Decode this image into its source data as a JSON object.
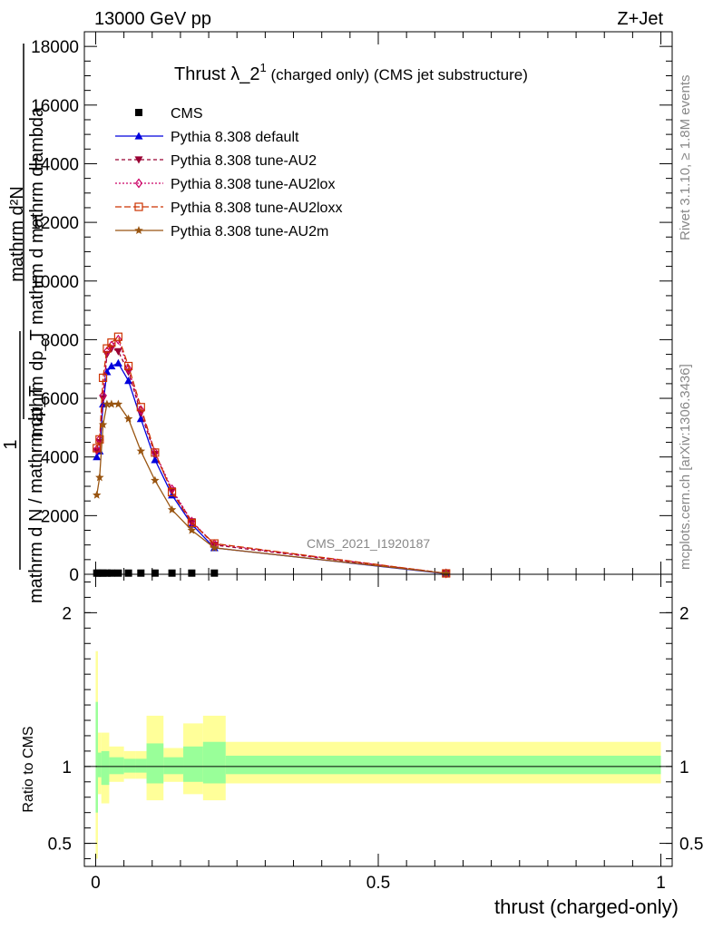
{
  "header": {
    "left": "13000 GeV pp",
    "right": "Z+Jet"
  },
  "side_labels": {
    "rivet": "Rivet 3.1.10, ≥ 1.8M events",
    "mcplots": "mcplots.cern.ch [arXiv:1306.3436]"
  },
  "watermark": "CMS_2021_I1920187",
  "chart_data": [
    {
      "type": "line",
      "panel": "main",
      "title": "Thrust λ_2¹ (charged only) (CMS jet substructure)",
      "title_main": "Thrust λ_2",
      "title_sup": "1",
      "title_rest": " (charged only) (CMS jet substructure)",
      "ylabel_top": "mathrm d²N",
      "ylabel_mid": "mathrm dp_T mathrm d mathrm dlambda",
      "ylabel_bottom": "mathrm d N / mathrm dp_T",
      "ylabel_one": "1",
      "xlim": [
        -0.02,
        1.02
      ],
      "ylim": [
        0,
        18500
      ],
      "yticks": [
        {
          "v": 0,
          "label": "0"
        },
        {
          "v": 2000,
          "label": "2000"
        },
        {
          "v": 4000,
          "label": "4000"
        },
        {
          "v": 6000,
          "label": "6000"
        },
        {
          "v": 8000,
          "label": "8000"
        },
        {
          "v": 10000,
          "label": "10000"
        },
        {
          "v": 12000,
          "label": "12000"
        },
        {
          "v": 14000,
          "label": "14000"
        },
        {
          "v": 16000,
          "label": "16000"
        },
        {
          "v": 18000,
          "label": "18000"
        }
      ],
      "legend_position": "top-left",
      "x": [
        0.002,
        0.007,
        0.013,
        0.02,
        0.028,
        0.04,
        0.058,
        0.08,
        0.105,
        0.135,
        0.17,
        0.21,
        0.62
      ],
      "series": [
        {
          "name": "CMS",
          "color": "#000000",
          "marker": "square",
          "dash": "",
          "values": [
            40,
            40,
            40,
            40,
            40,
            40,
            40,
            40,
            40,
            40,
            40,
            40,
            null
          ]
        },
        {
          "name": "Pythia 8.308 default",
          "color": "#0000dd",
          "marker": "triangle-up",
          "dash": "",
          "values": [
            4000,
            4200,
            5800,
            6900,
            7100,
            7200,
            6600,
            5300,
            3900,
            2700,
            1700,
            900,
            20
          ]
        },
        {
          "name": "Pythia 8.308 tune-AU2",
          "color": "#990033",
          "marker": "triangle-down",
          "dash": "4,3",
          "values": [
            4200,
            4500,
            6000,
            7500,
            7700,
            7600,
            6900,
            5500,
            4100,
            2850,
            1800,
            1000,
            30
          ]
        },
        {
          "name": "Pythia 8.308 tune-AU2lox",
          "color": "#cc0066",
          "marker": "diamond",
          "dash": "2,2",
          "values": [
            4250,
            4600,
            6100,
            7600,
            7800,
            8000,
            7000,
            5600,
            4150,
            2900,
            1800,
            1030,
            30
          ]
        },
        {
          "name": "Pythia 8.308 tune-AU2loxx",
          "color": "#cc3300",
          "marker": "square-open",
          "dash": "7,3",
          "values": [
            4300,
            4600,
            6700,
            7700,
            7900,
            8100,
            7100,
            5700,
            4150,
            2800,
            1750,
            1050,
            30
          ]
        },
        {
          "name": "Pythia 8.308 tune-AU2m",
          "color": "#995511",
          "marker": "star",
          "dash": "",
          "values": [
            2700,
            3300,
            5100,
            5800,
            5800,
            5800,
            5300,
            4200,
            3200,
            2200,
            1500,
            900,
            30
          ]
        }
      ]
    },
    {
      "type": "area",
      "panel": "ratio",
      "ylabel": "Ratio to CMS",
      "xlabel": "thrust (charged-only)",
      "xlim": [
        -0.02,
        1.02
      ],
      "ylim": [
        0.35,
        2.25
      ],
      "yticks": [
        {
          "v": 0.5,
          "label": "0.5"
        },
        {
          "v": 1,
          "label": "1"
        },
        {
          "v": 2,
          "label": "2"
        }
      ],
      "xticks": [
        {
          "v": 0,
          "label": "0"
        },
        {
          "v": 0.5,
          "label": "0.5"
        },
        {
          "v": 1,
          "label": "1"
        }
      ],
      "reference": 1,
      "bins": [
        {
          "lo": 0.0,
          "hi": 0.004,
          "yellow": [
            0.4,
            1.75
          ],
          "green": [
            0.7,
            1.42
          ]
        },
        {
          "lo": 0.004,
          "hi": 0.01,
          "yellow": [
            0.82,
            1.22
          ],
          "green": [
            0.93,
            1.09
          ]
        },
        {
          "lo": 0.01,
          "hi": 0.024,
          "yellow": [
            0.76,
            1.22
          ],
          "green": [
            0.88,
            1.1
          ]
        },
        {
          "lo": 0.024,
          "hi": 0.05,
          "yellow": [
            0.9,
            1.13
          ],
          "green": [
            0.95,
            1.06
          ]
        },
        {
          "lo": 0.05,
          "hi": 0.07,
          "yellow": [
            0.92,
            1.1
          ],
          "green": [
            0.96,
            1.05
          ]
        },
        {
          "lo": 0.07,
          "hi": 0.09,
          "yellow": [
            0.92,
            1.1
          ],
          "green": [
            0.96,
            1.05
          ]
        },
        {
          "lo": 0.09,
          "hi": 0.12,
          "yellow": [
            0.78,
            1.33
          ],
          "green": [
            0.89,
            1.15
          ]
        },
        {
          "lo": 0.12,
          "hi": 0.155,
          "yellow": [
            0.9,
            1.12
          ],
          "green": [
            0.95,
            1.06
          ]
        },
        {
          "lo": 0.155,
          "hi": 0.19,
          "yellow": [
            0.82,
            1.28
          ],
          "green": [
            0.9,
            1.13
          ]
        },
        {
          "lo": 0.19,
          "hi": 0.23,
          "yellow": [
            0.78,
            1.33
          ],
          "green": [
            0.89,
            1.16
          ]
        },
        {
          "lo": 0.23,
          "hi": 1.0,
          "yellow": [
            0.89,
            1.16
          ],
          "green": [
            0.95,
            1.07
          ]
        }
      ],
      "band_colors": {
        "yellow": "#ffff99",
        "green": "#99ff99"
      }
    }
  ]
}
